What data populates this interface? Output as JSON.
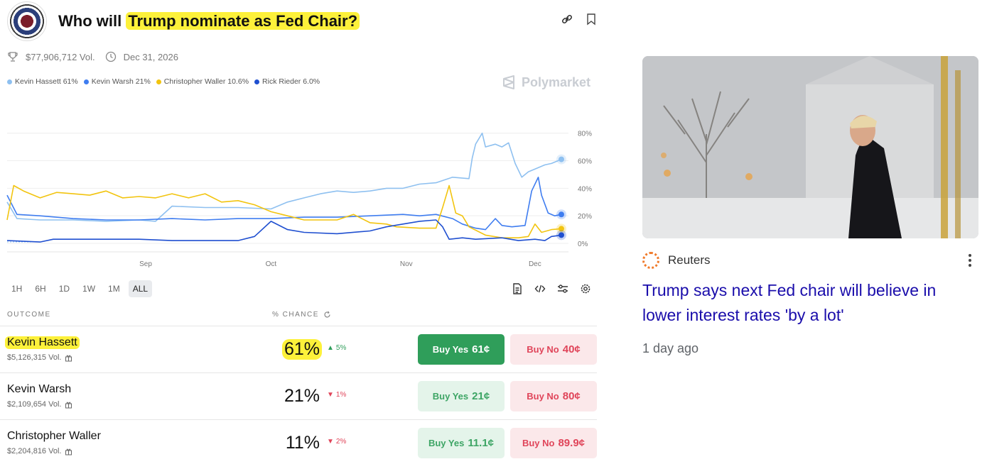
{
  "market": {
    "title_prefix": "Who will ",
    "title_highlight": "Trump nominate as Fed Chair?",
    "volume": "$77,906,712 Vol.",
    "end_date": "Dec 31, 2026",
    "brand": "Polymarket",
    "legend": [
      {
        "label": "Kevin Hassett 61%",
        "color": "#8ec0f0"
      },
      {
        "label": "Kevin Warsh 21%",
        "color": "#3f7df0"
      },
      {
        "label": "Christopher Waller 10.6%",
        "color": "#f2c40f"
      },
      {
        "label": "Rick Rieder 6.0%",
        "color": "#1f4fd0"
      }
    ],
    "ranges": [
      "1H",
      "6H",
      "1D",
      "1W",
      "1M",
      "ALL"
    ],
    "active_range": "ALL",
    "table_headers": {
      "outcome": "OUTCOME",
      "chance": "% CHANCE"
    },
    "outcomes": [
      {
        "name": "Kevin Hassett",
        "volume": "$5,126,315 Vol.",
        "chance": "61%",
        "change": "5%",
        "direction": "up",
        "buy_yes_label": "Buy Yes",
        "buy_yes_price": "61¢",
        "buy_no_label": "Buy No",
        "buy_no_price": "40¢"
      },
      {
        "name": "Kevin Warsh",
        "volume": "$2,109,654 Vol.",
        "chance": "21%",
        "change": "1%",
        "direction": "down",
        "buy_yes_label": "Buy Yes",
        "buy_yes_price": "21¢",
        "buy_no_label": "Buy No",
        "buy_no_price": "80¢"
      },
      {
        "name": "Christopher Waller",
        "volume": "$2,204,816 Vol.",
        "chance": "11%",
        "change": "2%",
        "direction": "down",
        "buy_yes_label": "Buy Yes",
        "buy_yes_price": "11.1¢",
        "buy_no_label": "Buy No",
        "buy_no_price": "89.9¢"
      }
    ]
  },
  "chart_data": {
    "type": "line",
    "x_ticks": [
      "Sep",
      "Oct",
      "Nov",
      "Dec"
    ],
    "y_ticks": [
      "80%",
      "60%",
      "40%",
      "20%",
      "0%"
    ],
    "ylim": [
      0,
      85
    ],
    "grid": true,
    "series": [
      {
        "name": "Kevin Hassett",
        "color": "#8ec0f0",
        "points": [
          [
            0,
            30
          ],
          [
            3,
            18
          ],
          [
            10,
            17
          ],
          [
            20,
            17
          ],
          [
            30,
            16
          ],
          [
            40,
            17
          ],
          [
            45,
            16
          ],
          [
            50,
            27
          ],
          [
            60,
            26
          ],
          [
            70,
            26
          ],
          [
            80,
            25
          ],
          [
            85,
            30
          ],
          [
            90,
            33
          ],
          [
            95,
            36
          ],
          [
            100,
            38
          ],
          [
            105,
            37
          ],
          [
            110,
            38
          ],
          [
            115,
            40
          ],
          [
            120,
            40
          ],
          [
            125,
            43
          ],
          [
            130,
            44
          ],
          [
            135,
            48
          ],
          [
            140,
            47
          ],
          [
            141,
            62
          ],
          [
            142,
            72
          ],
          [
            144,
            80
          ],
          [
            145,
            70
          ],
          [
            148,
            72
          ],
          [
            150,
            70
          ],
          [
            152,
            73
          ],
          [
            154,
            58
          ],
          [
            156,
            48
          ],
          [
            158,
            52
          ],
          [
            160,
            54
          ],
          [
            163,
            57
          ],
          [
            165,
            58
          ],
          [
            168,
            61
          ]
        ]
      },
      {
        "name": "Kevin Warsh",
        "color": "#3f7df0",
        "points": [
          [
            0,
            35
          ],
          [
            3,
            21
          ],
          [
            10,
            20
          ],
          [
            20,
            18
          ],
          [
            30,
            17
          ],
          [
            40,
            17
          ],
          [
            50,
            18
          ],
          [
            60,
            17
          ],
          [
            70,
            18
          ],
          [
            80,
            18
          ],
          [
            90,
            19
          ],
          [
            100,
            19
          ],
          [
            110,
            20
          ],
          [
            120,
            21
          ],
          [
            125,
            20
          ],
          [
            130,
            21
          ],
          [
            135,
            18
          ],
          [
            138,
            14
          ],
          [
            142,
            11
          ],
          [
            145,
            10
          ],
          [
            148,
            18
          ],
          [
            150,
            13
          ],
          [
            153,
            12
          ],
          [
            157,
            13
          ],
          [
            159,
            38
          ],
          [
            161,
            48
          ],
          [
            162,
            35
          ],
          [
            164,
            22
          ],
          [
            166,
            20
          ],
          [
            168,
            21
          ]
        ]
      },
      {
        "name": "Christopher Waller",
        "color": "#f2c40f",
        "points": [
          [
            0,
            17
          ],
          [
            2,
            42
          ],
          [
            5,
            38
          ],
          [
            10,
            33
          ],
          [
            15,
            37
          ],
          [
            20,
            36
          ],
          [
            25,
            35
          ],
          [
            30,
            38
          ],
          [
            35,
            33
          ],
          [
            40,
            34
          ],
          [
            45,
            33
          ],
          [
            50,
            36
          ],
          [
            55,
            33
          ],
          [
            60,
            36
          ],
          [
            65,
            30
          ],
          [
            70,
            31
          ],
          [
            75,
            28
          ],
          [
            80,
            23
          ],
          [
            85,
            20
          ],
          [
            90,
            17
          ],
          [
            100,
            17
          ],
          [
            105,
            21
          ],
          [
            110,
            15
          ],
          [
            115,
            14
          ],
          [
            118,
            12
          ],
          [
            125,
            11
          ],
          [
            130,
            11
          ],
          [
            132,
            26
          ],
          [
            134,
            42
          ],
          [
            136,
            22
          ],
          [
            138,
            20
          ],
          [
            140,
            12
          ],
          [
            145,
            6
          ],
          [
            150,
            4
          ],
          [
            155,
            4
          ],
          [
            158,
            5
          ],
          [
            160,
            14
          ],
          [
            162,
            8
          ],
          [
            165,
            10
          ],
          [
            168,
            10.6
          ]
        ]
      },
      {
        "name": "Rick Rieder",
        "color": "#1f4fd0",
        "points": [
          [
            0,
            2
          ],
          [
            10,
            1
          ],
          [
            14,
            3
          ],
          [
            20,
            3
          ],
          [
            30,
            3
          ],
          [
            40,
            3
          ],
          [
            50,
            2
          ],
          [
            60,
            2
          ],
          [
            70,
            2
          ],
          [
            75,
            5
          ],
          [
            80,
            16
          ],
          [
            85,
            10
          ],
          [
            90,
            8
          ],
          [
            100,
            7
          ],
          [
            110,
            9
          ],
          [
            115,
            12
          ],
          [
            120,
            14
          ],
          [
            125,
            16
          ],
          [
            130,
            17
          ],
          [
            132,
            12
          ],
          [
            134,
            3
          ],
          [
            138,
            4
          ],
          [
            142,
            3
          ],
          [
            150,
            4
          ],
          [
            155,
            2
          ],
          [
            160,
            3
          ],
          [
            163,
            2
          ],
          [
            165,
            5
          ],
          [
            168,
            6
          ]
        ]
      }
    ]
  },
  "news": {
    "source": "Reuters",
    "headline": "Trump says next Fed chair will believe in lower interest rates 'by a lot'",
    "time": "1 day ago"
  }
}
